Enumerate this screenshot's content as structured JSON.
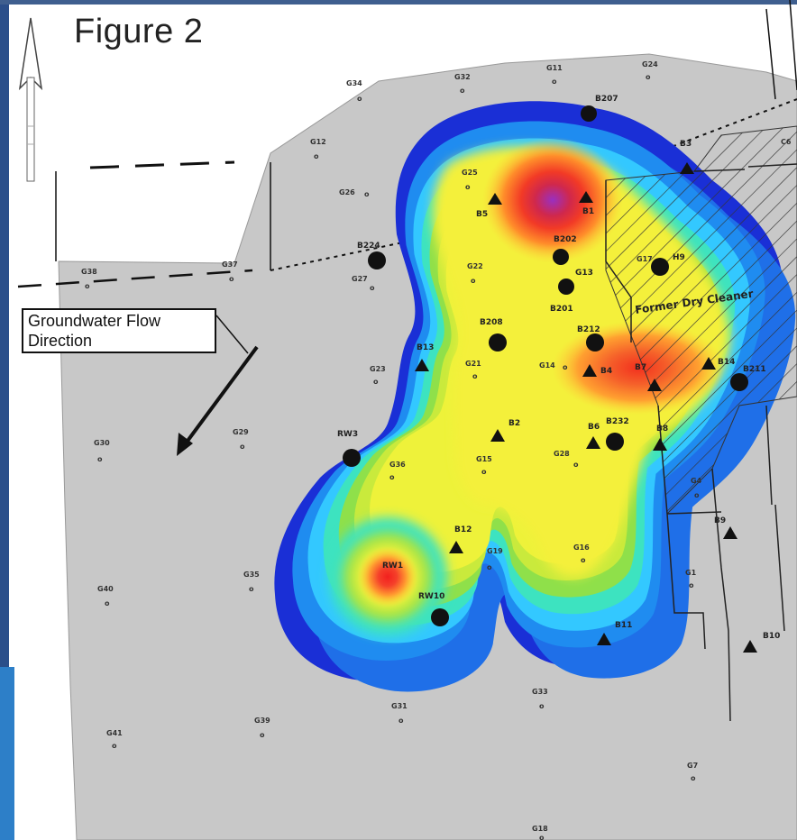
{
  "figure": {
    "title": "Figure 2",
    "flow_label_line1": "Groundwater Flow",
    "flow_label_line2": "Direction",
    "area_caption": "Former Dry Cleaner"
  },
  "colors": {
    "site_fill": "#c8c8c8",
    "frame_blue": "#2b4f8a",
    "plume_scale": [
      "#1a2fd6",
      "#1f8cf0",
      "#33d1ff",
      "#3de3b0",
      "#8fe04a",
      "#e8f23c",
      "#ffe43a",
      "#ff9a2a",
      "#f23a26",
      "#a02eb8"
    ]
  },
  "wells": {
    "circles": [
      {
        "id": "B207",
        "label": "B207"
      },
      {
        "id": "B224",
        "label": "B224"
      },
      {
        "id": "B202",
        "label": "B202"
      },
      {
        "id": "G13",
        "label": "G13"
      },
      {
        "id": "B201",
        "label": "B201"
      },
      {
        "id": "H9",
        "label": "H9"
      },
      {
        "id": "B208",
        "label": "B208"
      },
      {
        "id": "B212",
        "label": "B212"
      },
      {
        "id": "B232",
        "label": "B232"
      },
      {
        "id": "B211",
        "label": "B211"
      },
      {
        "id": "RW3",
        "label": "RW3"
      },
      {
        "id": "RW1",
        "label": "RW1"
      },
      {
        "id": "RW10",
        "label": "RW10"
      }
    ],
    "triangles": [
      {
        "id": "B1",
        "label": "B1"
      },
      {
        "id": "B3",
        "label": "B3"
      },
      {
        "id": "B5",
        "label": "B5"
      },
      {
        "id": "B2",
        "label": "B2"
      },
      {
        "id": "B6",
        "label": "B6"
      },
      {
        "id": "B4",
        "label": "B4"
      },
      {
        "id": "B7",
        "label": "B7"
      },
      {
        "id": "B8",
        "label": "B8"
      },
      {
        "id": "B13",
        "label": "B13"
      },
      {
        "id": "B11",
        "label": "B11"
      },
      {
        "id": "B10",
        "label": "B10"
      },
      {
        "id": "B12",
        "label": "B12"
      },
      {
        "id": "B9",
        "label": "B9"
      },
      {
        "id": "B14",
        "label": "B14"
      }
    ],
    "small": [
      {
        "id": "G34",
        "label": "G34"
      },
      {
        "id": "G32",
        "label": "G32"
      },
      {
        "id": "G11",
        "label": "G11"
      },
      {
        "id": "G24",
        "label": "G24"
      },
      {
        "id": "G12",
        "label": "G12"
      },
      {
        "id": "G25",
        "label": "G25"
      },
      {
        "id": "G26",
        "label": "G26"
      },
      {
        "id": "G27",
        "label": "G27"
      },
      {
        "id": "G37",
        "label": "G37"
      },
      {
        "id": "G38",
        "label": "G38"
      },
      {
        "id": "G22",
        "label": "G22"
      },
      {
        "id": "G23",
        "label": "G23"
      },
      {
        "id": "G21",
        "label": "G21"
      },
      {
        "id": "G14",
        "label": "G14"
      },
      {
        "id": "G29",
        "label": "G29"
      },
      {
        "id": "G30",
        "label": "G30"
      },
      {
        "id": "G36",
        "label": "G36"
      },
      {
        "id": "G15",
        "label": "G15"
      },
      {
        "id": "G28",
        "label": "G28"
      },
      {
        "id": "G19",
        "label": "G19"
      },
      {
        "id": "G16",
        "label": "G16"
      },
      {
        "id": "G35",
        "label": "G35"
      },
      {
        "id": "G40",
        "label": "G40"
      },
      {
        "id": "G31",
        "label": "G31"
      },
      {
        "id": "G39",
        "label": "G39"
      },
      {
        "id": "G41",
        "label": "G41"
      },
      {
        "id": "G33",
        "label": "G33"
      },
      {
        "id": "G18",
        "label": "G18"
      },
      {
        "id": "G4",
        "label": "G4"
      },
      {
        "id": "G1",
        "label": "G1"
      },
      {
        "id": "G7",
        "label": "G7"
      },
      {
        "id": "G17",
        "label": "G17"
      },
      {
        "id": "C6",
        "label": "C6"
      }
    ]
  }
}
